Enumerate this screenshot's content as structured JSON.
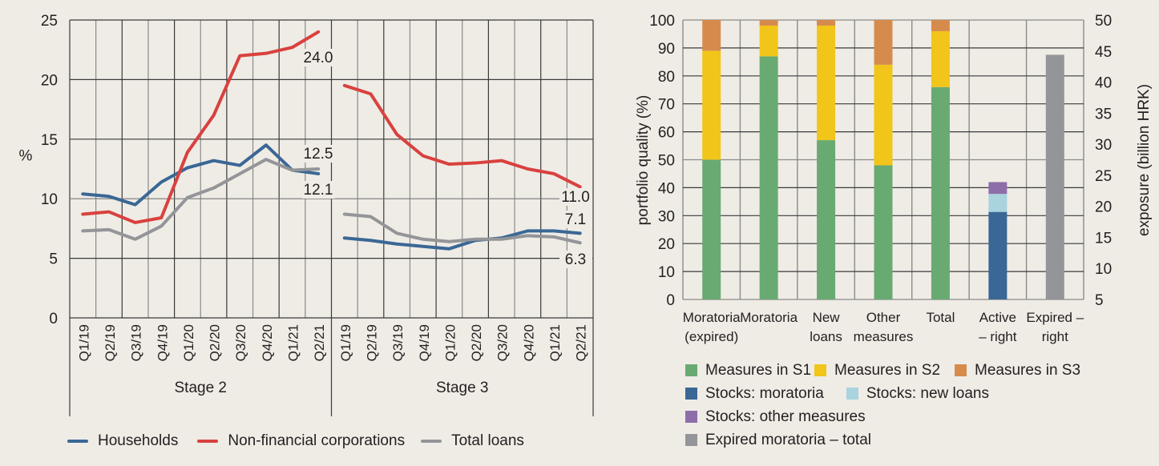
{
  "chart_data": [
    {
      "type": "line",
      "title": "",
      "ylabel": "%",
      "xlabel": "",
      "ylim": [
        0,
        25
      ],
      "yticks": [
        0,
        5,
        10,
        15,
        20,
        25
      ],
      "grid": true,
      "legend_position": "bottom",
      "panels": [
        {
          "name": "Stage 2",
          "categories": [
            "Q1/19",
            "Q2/19",
            "Q3/19",
            "Q4/19",
            "Q1/20",
            "Q2/20",
            "Q3/20",
            "Q4/20",
            "Q1/21",
            "Q2/21"
          ],
          "series": [
            {
              "name": "Households",
              "color": "#3a6795",
              "values": [
                10.4,
                10.2,
                9.5,
                11.4,
                12.6,
                13.2,
                12.8,
                14.5,
                12.4,
                12.1
              ]
            },
            {
              "name": "Non-financial corporations",
              "color": "#d9413e",
              "values": [
                8.7,
                8.9,
                8.0,
                8.4,
                13.9,
                17.0,
                22.0,
                22.2,
                22.7,
                24.0
              ]
            },
            {
              "name": "Total loans",
              "color": "#939598",
              "values": [
                7.3,
                7.4,
                6.6,
                7.7,
                10.1,
                10.9,
                12.1,
                13.3,
                12.4,
                12.5
              ]
            }
          ],
          "annotations": [
            "24.0",
            "12.5",
            "12.1"
          ]
        },
        {
          "name": "Stage 3",
          "categories": [
            "Q1/19",
            "Q2/19",
            "Q3/19",
            "Q4/19",
            "Q1/20",
            "Q2/20",
            "Q3/20",
            "Q4/20",
            "Q1/21",
            "Q2/21"
          ],
          "series": [
            {
              "name": "Households",
              "color": "#3a6795",
              "values": [
                6.7,
                6.5,
                6.2,
                6.0,
                5.8,
                6.5,
                6.7,
                7.3,
                7.3,
                7.1
              ]
            },
            {
              "name": "Non-financial corporations",
              "color": "#d9413e",
              "values": [
                19.5,
                18.8,
                15.4,
                13.6,
                12.9,
                13.0,
                13.2,
                12.5,
                12.1,
                11.0
              ]
            },
            {
              "name": "Total loans",
              "color": "#939598",
              "values": [
                8.7,
                8.5,
                7.1,
                6.6,
                6.4,
                6.6,
                6.6,
                6.9,
                6.8,
                6.3
              ]
            }
          ],
          "annotations": [
            "11.0",
            "7.1",
            "6.3"
          ]
        }
      ],
      "legend": [
        "Households",
        "Non-financial corporations",
        "Total loans"
      ]
    },
    {
      "type": "bar",
      "stacked": true,
      "title": "",
      "ylabel": "portfolio quality (%)",
      "ylabel_right": "exposure (billion HRK)",
      "ylim": [
        0,
        100
      ],
      "ylim_right": [
        5,
        50
      ],
      "yticks": [
        0,
        10,
        20,
        30,
        40,
        50,
        60,
        70,
        80,
        90,
        100
      ],
      "yticks_right": [
        5,
        10,
        15,
        20,
        25,
        30,
        35,
        40,
        45,
        50
      ],
      "grid": true,
      "legend_position": "bottom",
      "categories": [
        {
          "line1": "Moratoria",
          "line2": "(expired)"
        },
        {
          "line1": "Moratoria",
          "line2": ""
        },
        {
          "line1": "New",
          "line2": "loans"
        },
        {
          "line1": "Other",
          "line2": "measures"
        },
        {
          "line1": "Total",
          "line2": ""
        },
        {
          "line1": "Active",
          "line2": "– right"
        },
        {
          "line1": "Expired –",
          "line2": "right"
        }
      ],
      "series": [
        {
          "name": "Measures in S1",
          "color": "#68aa72",
          "axis": "left",
          "values": [
            50,
            87,
            57,
            48,
            76,
            null,
            null
          ]
        },
        {
          "name": "Measures in S2",
          "color": "#f1c519",
          "axis": "left",
          "values": [
            39,
            11,
            41,
            36,
            20,
            null,
            null
          ]
        },
        {
          "name": "Measures in S3",
          "color": "#d68b4d",
          "axis": "left",
          "values": [
            11,
            2,
            2,
            16,
            4,
            null,
            null
          ]
        },
        {
          "name": "Stocks: moratoria",
          "color": "#3a6795",
          "axis": "right",
          "values": [
            null,
            null,
            null,
            null,
            null,
            14.1,
            null
          ]
        },
        {
          "name": "Stocks: new loans",
          "color": "#a9d3df",
          "axis": "right",
          "values": [
            null,
            null,
            null,
            null,
            null,
            2.9,
            null
          ]
        },
        {
          "name": "Stocks: other measures",
          "color": "#8d6ea8",
          "axis": "right",
          "values": [
            null,
            null,
            null,
            null,
            null,
            1.9,
            null
          ]
        },
        {
          "name": "Expired moratoria – total",
          "color": "#939598",
          "axis": "right",
          "values": [
            null,
            null,
            null,
            null,
            null,
            null,
            39.4
          ]
        }
      ],
      "legend_rows": [
        [
          "Measures in S1",
          "Measures in S2",
          "Measures in S3"
        ],
        [
          "Stocks: moratoria",
          "Stocks: new loans"
        ],
        [
          "Stocks: other measures"
        ],
        [
          "Expired moratoria – total"
        ]
      ]
    }
  ]
}
